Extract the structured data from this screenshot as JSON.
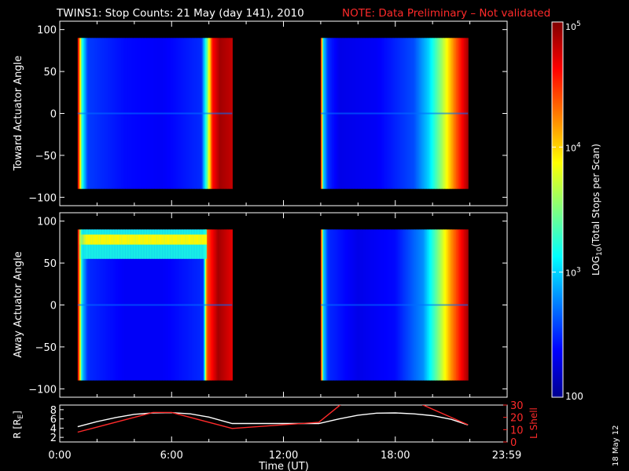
{
  "title": {
    "main": "TWINS1: Stop Counts: 21 May (day 141), 2010",
    "note": "NOTE: Data Preliminary – Not validated",
    "note_color": "#ff2a2a"
  },
  "side_date": "18 May 12",
  "chart_data": [
    {
      "type": "heatmap",
      "name": "toward",
      "ylabel": "Toward Actuator Angle",
      "ylim": [
        -110,
        110
      ],
      "yticks": [
        "100",
        "50",
        "0",
        "−50",
        "−100"
      ],
      "ytick_values": [
        100,
        50,
        0,
        -50,
        -100
      ],
      "data_extent_deg": [
        -90,
        90
      ],
      "segments": [
        {
          "t_start": 0.96,
          "t_end": 9.25,
          "stops": [
            {
              "t": 0.96,
              "v": 4.9
            },
            {
              "t": 1.2,
              "v": 3.2
            },
            {
              "t": 1.5,
              "v": 2.55
            },
            {
              "t": 3.5,
              "v": 2.4
            },
            {
              "t": 5.5,
              "v": 2.35
            },
            {
              "t": 7.6,
              "v": 2.5
            },
            {
              "t": 7.9,
              "v": 3.4
            },
            {
              "t": 8.2,
              "v": 4.6
            },
            {
              "t": 8.6,
              "v": 4.9
            },
            {
              "t": 9.25,
              "v": 4.8
            }
          ]
        },
        {
          "t_start": 14.0,
          "t_end": 21.9,
          "stops": [
            {
              "t": 14.0,
              "v": 4.8
            },
            {
              "t": 14.15,
              "v": 3.0
            },
            {
              "t": 14.4,
              "v": 2.5
            },
            {
              "t": 15.0,
              "v": 2.3
            },
            {
              "t": 17.0,
              "v": 2.35
            },
            {
              "t": 19.0,
              "v": 2.6
            },
            {
              "t": 19.8,
              "v": 3.0
            },
            {
              "t": 20.5,
              "v": 3.6
            },
            {
              "t": 21.2,
              "v": 4.3
            },
            {
              "t": 21.9,
              "v": 4.9
            }
          ]
        }
      ]
    },
    {
      "type": "heatmap",
      "name": "away",
      "ylabel": "Away Actuator Angle",
      "ylim": [
        -110,
        110
      ],
      "yticks": [
        "100",
        "50",
        "0",
        "−50",
        "−100"
      ],
      "ytick_values": [
        100,
        50,
        0,
        -50,
        -100
      ],
      "data_extent_deg": [
        -90,
        90
      ],
      "segments": [
        {
          "t_start": 0.96,
          "t_end": 9.25,
          "stops": [
            {
              "t": 0.96,
              "v": 4.9
            },
            {
              "t": 1.2,
              "v": 3.0
            },
            {
              "t": 1.5,
              "v": 2.5
            },
            {
              "t": 3.5,
              "v": 2.35
            },
            {
              "t": 5.5,
              "v": 2.35
            },
            {
              "t": 7.7,
              "v": 2.5
            },
            {
              "t": 7.9,
              "v": 4.4
            },
            {
              "t": 8.5,
              "v": 4.9
            },
            {
              "t": 9.25,
              "v": 4.7
            }
          ]
        },
        {
          "t_start": 14.0,
          "t_end": 21.9,
          "stops": [
            {
              "t": 14.0,
              "v": 4.8
            },
            {
              "t": 14.15,
              "v": 3.0
            },
            {
              "t": 14.4,
              "v": 2.5
            },
            {
              "t": 16.0,
              "v": 2.3
            },
            {
              "t": 18.0,
              "v": 2.4
            },
            {
              "t": 19.5,
              "v": 2.8
            },
            {
              "t": 20.3,
              "v": 3.5
            },
            {
              "t": 21.0,
              "v": 4.2
            },
            {
              "t": 21.9,
              "v": 4.9
            }
          ]
        }
      ],
      "high_band": {
        "t_start": 0.96,
        "t_end": 7.8,
        "angle_top": 90,
        "angle_bottom": 55,
        "peak_angle": 78,
        "value": 3.9
      }
    },
    {
      "type": "line",
      "name": "orbit",
      "ylabel_left": "R [R",
      "ylabel_left_sub": "E",
      "ylabel_left_close": "]",
      "ylabel_right": "L Shell",
      "ylim_left": [
        1,
        9
      ],
      "ylim_right": [
        0,
        30
      ],
      "yticks_left": [
        "8",
        "6",
        "4",
        "2"
      ],
      "ytick_values_left": [
        8,
        6,
        4,
        2
      ],
      "yticks_right": [
        "30",
        "20",
        "10",
        "0"
      ],
      "ytick_values_right": [
        30,
        20,
        10,
        0
      ],
      "xticks": [
        "0:00",
        "6:00",
        "12:00",
        "18:00",
        "23:59"
      ],
      "xtick_values": [
        0,
        6,
        12,
        18,
        23.98
      ],
      "xlabel": "Time (UT)",
      "xlim": [
        0,
        24
      ],
      "series": [
        {
          "name": "R",
          "color": "#ffffff",
          "axis": "left",
          "t": [
            0.96,
            2,
            3,
            4,
            5,
            6,
            7,
            8,
            9.25,
            13.9,
            15,
            16,
            17,
            18,
            19,
            20,
            21,
            21.9
          ],
          "values": [
            4.3,
            5.4,
            6.3,
            7.0,
            7.3,
            7.35,
            7.1,
            6.4,
            5.0,
            5.0,
            6.0,
            6.8,
            7.25,
            7.3,
            7.1,
            6.7,
            5.9,
            4.7
          ]
        },
        {
          "name": "L Shell",
          "color": "#ff2a2a",
          "axis": "right",
          "t": [
            0.96,
            5.0,
            6.0,
            9.25,
            13.9,
            15.2,
            19.2,
            21.9
          ],
          "values": [
            8.0,
            24.0,
            24.0,
            11.0,
            16.0,
            32.0,
            32.0,
            14.0
          ]
        }
      ]
    }
  ],
  "colorbar": {
    "label_prefix": "LOG",
    "label_sub": "10",
    "label_rest": "(Total Stops per Scan)",
    "vmin_log": 2,
    "vmax_log": 5,
    "ticks": [
      {
        "value": 5,
        "text": "10",
        "sup": "5"
      },
      {
        "value": 4,
        "text": "10",
        "sup": "4"
      },
      {
        "value": 3,
        "text": "10",
        "sup": "3"
      },
      {
        "value": 2,
        "text": "100",
        "sup": ""
      }
    ]
  }
}
